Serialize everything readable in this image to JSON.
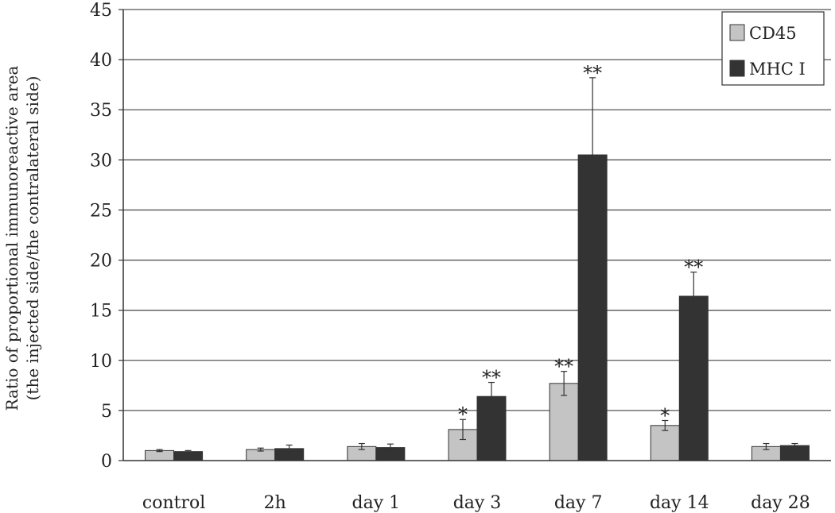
{
  "chart_data": {
    "type": "bar",
    "title": "",
    "xlabel": "",
    "ylabel_lines": [
      "Ratio of proportional immunoreactive area",
      "(the injected side/the contralateral side)"
    ],
    "ylim": [
      0,
      45
    ],
    "yticks": [
      0,
      5,
      10,
      15,
      20,
      25,
      30,
      35,
      40,
      45
    ],
    "grid": true,
    "legend_position": "top-right",
    "categories": [
      "control",
      "2h",
      "day 1",
      "day 3",
      "day 7",
      "day 14",
      "day 28"
    ],
    "series": [
      {
        "name": "CD45",
        "color": "#c4c4c4",
        "values": [
          1.0,
          1.1,
          1.4,
          3.1,
          7.7,
          3.5,
          1.4
        ],
        "errors": [
          0.1,
          0.15,
          0.3,
          1.0,
          1.2,
          0.5,
          0.3
        ],
        "significance": [
          "",
          "",
          "",
          "*",
          "**",
          "*",
          ""
        ]
      },
      {
        "name": "MHC I",
        "color": "#333333",
        "values": [
          0.9,
          1.2,
          1.3,
          6.4,
          30.5,
          16.4,
          1.5
        ],
        "errors": [
          0.1,
          0.35,
          0.35,
          1.4,
          7.7,
          2.4,
          0.2
        ],
        "significance": [
          "",
          "",
          "",
          "**",
          "**",
          "**",
          ""
        ]
      }
    ]
  }
}
